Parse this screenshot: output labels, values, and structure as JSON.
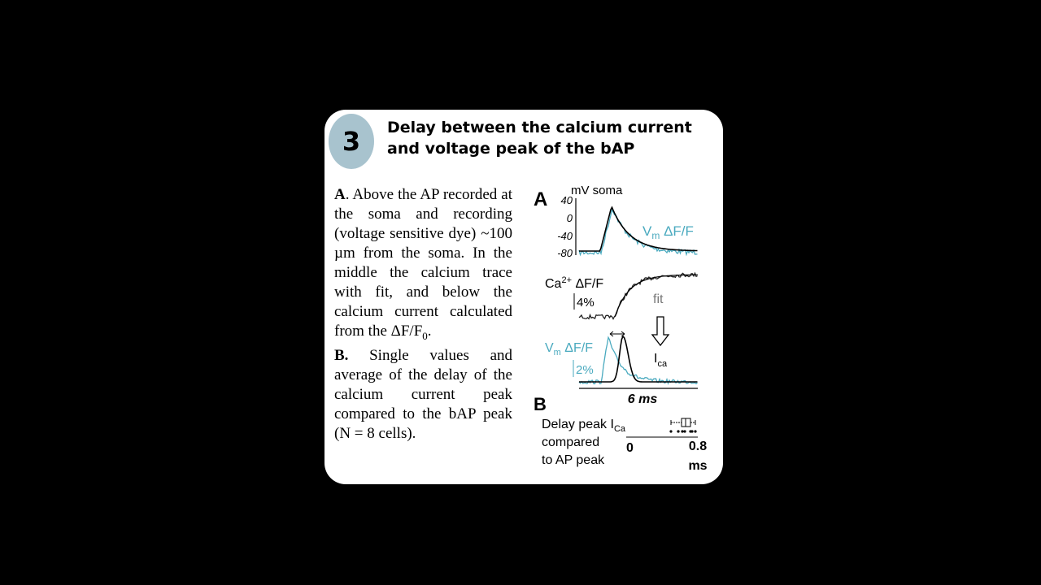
{
  "badge": "3",
  "title": {
    "line1": "Delay between the calcium current",
    "line2": "and voltage peak of the bAP"
  },
  "text": {
    "a_label": "A",
    "a_body": ". Above the AP recorded at the soma and recording (voltage sensitive dye) ~100 µm from the soma. In the middle the calcium trace with fit, and below the calcium current calculated from the ΔF/F",
    "a_sub": "0",
    "a_end": ".",
    "b_label": "B.",
    "b_body": " Single values and average of the delay of the calcium current peak compared to the bAP peak (N = 8 cells)."
  },
  "figure": {
    "panel_a": "A",
    "y_unit": "mV soma",
    "yticks": [
      "40",
      "0",
      "-40",
      "-80"
    ],
    "vm_label": {
      "main": "V",
      "sub": "m",
      "rest": " ΔF/F"
    },
    "ca_label": {
      "main": "Ca",
      "sup": "2+",
      "rest": " ΔF/F"
    },
    "ca_scale": "4%",
    "fit": "fit",
    "vm_label2": {
      "main": "V",
      "sub": "m",
      "rest": " ΔF/F"
    },
    "vm_scale": "2%",
    "ica_label": {
      "main": "I",
      "sub": "ca"
    },
    "time_scale": "6 ms",
    "panel_b": "B",
    "delay_label": {
      "line1": "Delay peak I",
      "sub": "Ca",
      "line2": "compared",
      "line3": "to AP peak"
    },
    "axis_min": "0",
    "axis_max": "0.8",
    "axis_unit": "ms"
  }
}
